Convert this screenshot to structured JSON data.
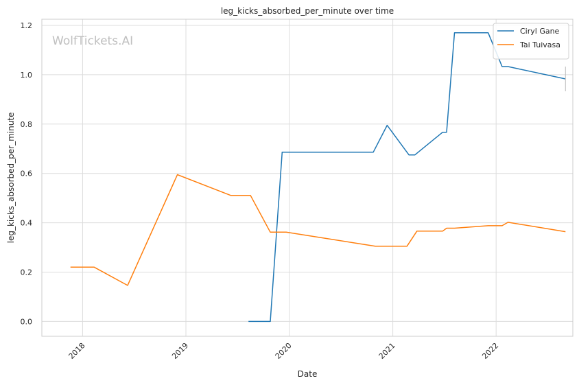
{
  "chart_data": {
    "type": "line",
    "title": "leg_kicks_absorbed_per_minute over time",
    "xlabel": "Date",
    "ylabel": "leg_kicks_absorbed_per_minute",
    "watermark": "WolfTickets.AI",
    "x_tick_labels": [
      "2018",
      "2019",
      "2020",
      "2021",
      "2022"
    ],
    "y_tick_labels": [
      "0.0",
      "0.2",
      "0.4",
      "0.6",
      "0.8",
      "1.0",
      "1.2"
    ],
    "y_ticks": [
      0.0,
      0.2,
      0.4,
      0.6,
      0.8,
      1.0,
      1.2
    ],
    "xlim": [
      "2017-08-10",
      "2022-09-29"
    ],
    "ylim": [
      -0.06,
      1.225
    ],
    "grid": true,
    "legend_position": "top-right",
    "series": [
      {
        "name": "Ciryl Gane",
        "color": "#1f77b4",
        "points": [
          [
            "2019-08-10",
            0.0
          ],
          [
            "2019-10-26",
            0.0
          ],
          [
            "2019-12-07",
            0.686
          ],
          [
            "2020-10-24",
            0.686
          ],
          [
            "2020-12-12",
            0.795
          ],
          [
            "2021-02-27",
            0.675
          ],
          [
            "2021-03-20",
            0.675
          ],
          [
            "2021-06-26",
            0.767
          ],
          [
            "2021-07-10",
            0.767
          ],
          [
            "2021-08-07",
            1.17
          ],
          [
            "2021-12-04",
            1.17
          ],
          [
            "2022-01-22",
            1.033
          ],
          [
            "2022-02-12",
            1.033
          ],
          [
            "2022-09-03",
            0.983
          ]
        ]
      },
      {
        "name": "Tai Tuivasa",
        "color": "#ff7f0e",
        "points": [
          [
            "2017-11-19",
            0.22
          ],
          [
            "2018-02-11",
            0.22
          ],
          [
            "2018-06-09",
            0.146
          ],
          [
            "2018-12-02",
            0.595
          ],
          [
            "2019-06-08",
            0.511
          ],
          [
            "2019-08-17",
            0.511
          ],
          [
            "2019-10-26",
            0.362
          ],
          [
            "2019-12-21",
            0.362
          ],
          [
            "2020-10-31",
            0.305
          ],
          [
            "2021-02-20",
            0.305
          ],
          [
            "2021-03-27",
            0.366
          ],
          [
            "2021-06-26",
            0.366
          ],
          [
            "2021-07-10",
            0.378
          ],
          [
            "2021-08-07",
            0.378
          ],
          [
            "2021-12-04",
            0.388
          ],
          [
            "2022-01-22",
            0.388
          ],
          [
            "2022-02-12",
            0.402
          ],
          [
            "2022-09-03",
            0.364
          ]
        ]
      }
    ]
  }
}
